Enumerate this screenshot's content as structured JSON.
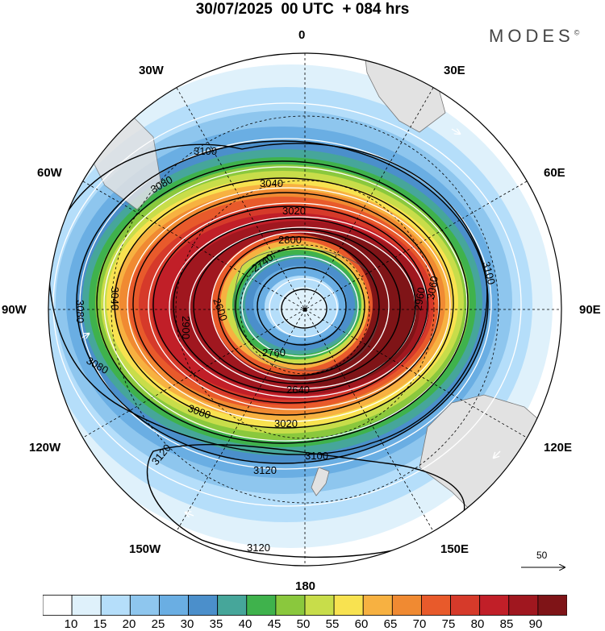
{
  "header": {
    "title": "30/07/2025  00 UTC  + 084 hrs",
    "brand": "MODES",
    "brand_mark": "©"
  },
  "map": {
    "projection": "south polar stereographic",
    "longitude_labels": {
      "top": "0",
      "top_left": "30W",
      "top_right": "30E",
      "upper_left": "60W",
      "upper_right": "60E",
      "left": "90W",
      "right": "90E",
      "lower_left": "120W",
      "lower_right": "120E",
      "bottom_left": "150W",
      "bottom_right": "150E",
      "bottom": "180"
    },
    "height_contour_labels": [
      "3100",
      "3080",
      "3040",
      "3020",
      "2800",
      "2740",
      "2760",
      "2600",
      "2640",
      "3060",
      "3120",
      "3000",
      "2960",
      "2900",
      "2840"
    ],
    "vector_reference": "50",
    "colors": {
      "land": "#e2e2e2",
      "contour": "#000000",
      "streamline": "#ffffff"
    }
  },
  "colorbar": {
    "levels": [
      "10",
      "15",
      "20",
      "25",
      "30",
      "35",
      "40",
      "45",
      "50",
      "55",
      "60",
      "65",
      "70",
      "75",
      "80",
      "85",
      "90"
    ],
    "colors": [
      "#ffffff",
      "#dff1fb",
      "#b5defa",
      "#8ec6ee",
      "#6aaee3",
      "#4b8fcb",
      "#46a69a",
      "#3fb24c",
      "#8ac83d",
      "#c8dd4a",
      "#f8e250",
      "#f7b141",
      "#f08a32",
      "#e85a2b",
      "#d63a2a",
      "#c11f28",
      "#a0171f",
      "#7f1417"
    ]
  }
}
